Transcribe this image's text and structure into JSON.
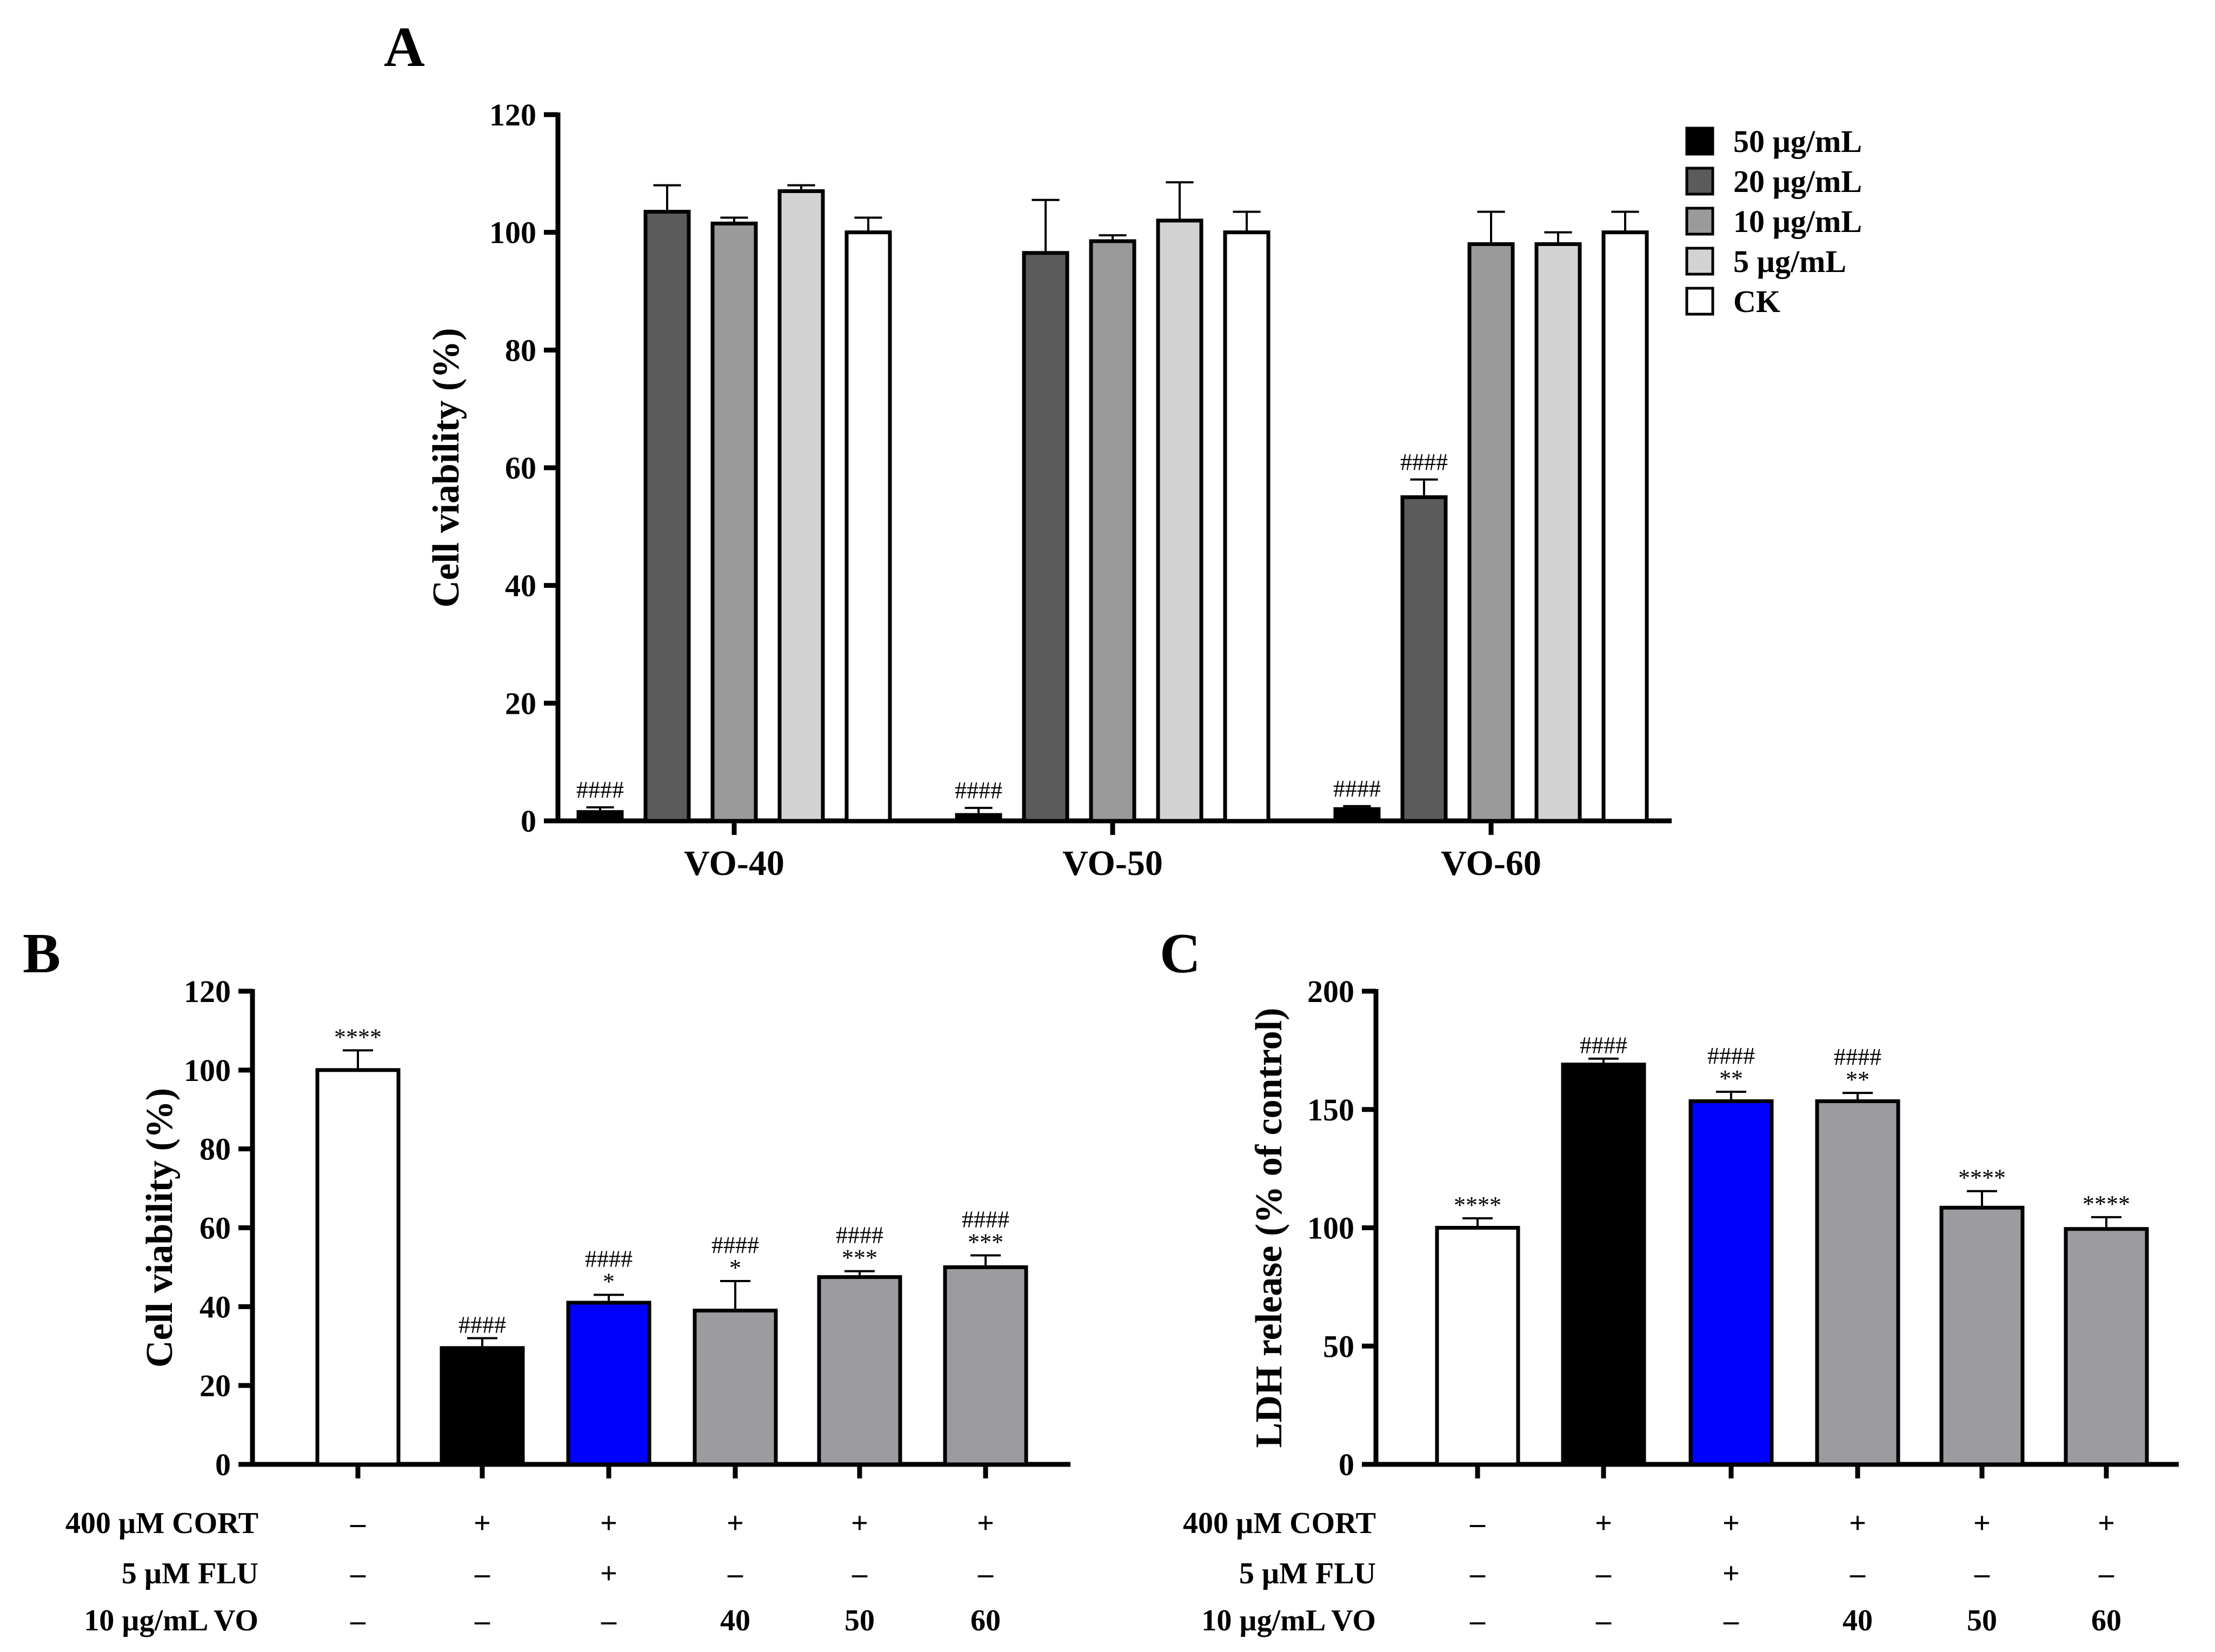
{
  "chart_data": [
    {
      "panel": "A",
      "type": "bar",
      "ylabel": "Cell viability (%)",
      "ylim": [
        0,
        120
      ],
      "yticks": [
        "0",
        "20",
        "40",
        "60",
        "80",
        "100",
        "120"
      ],
      "categories": [
        "VO-40",
        "VO-50",
        "VO-60"
      ],
      "legend_position": "top-right",
      "series": [
        {
          "name": "50 µg/mL",
          "color": "#000000",
          "values": [
            1.5,
            1,
            2
          ],
          "errors": [
            0.8,
            1.2,
            0.5
          ],
          "annotations": [
            "####",
            "####",
            "####"
          ]
        },
        {
          "name": "20 µg/mL",
          "color": "#5b5b5b",
          "values": [
            103.5,
            96.5,
            55
          ],
          "errors": [
            4.5,
            9,
            3
          ],
          "annotations": [
            "",
            "",
            "####"
          ]
        },
        {
          "name": "10 µg/mL",
          "color": "#9a9a9a",
          "values": [
            101.5,
            98.5,
            98
          ],
          "errors": [
            1,
            1,
            5.5
          ],
          "annotations": [
            "",
            "",
            ""
          ]
        },
        {
          "name": "5 µg/mL",
          "color": "#d3d3d3",
          "values": [
            107,
            102,
            98
          ],
          "errors": [
            1,
            6.5,
            2
          ],
          "annotations": [
            "",
            "",
            ""
          ]
        },
        {
          "name": "CK",
          "color": "#ffffff",
          "values": [
            100,
            100,
            100
          ],
          "errors": [
            2.5,
            3.5,
            3.5
          ],
          "annotations": [
            "",
            "",
            ""
          ]
        }
      ]
    },
    {
      "panel": "B",
      "type": "bar",
      "ylabel": "Cell viability (%)",
      "ylim": [
        0,
        120
      ],
      "yticks": [
        "0",
        "20",
        "40",
        "60",
        "80",
        "100",
        "120"
      ],
      "values": [
        100,
        29.5,
        41,
        39,
        47.5,
        50
      ],
      "errors": [
        5,
        2.5,
        2,
        7.5,
        1.5,
        3
      ],
      "colors": [
        "#ffffff",
        "#000000",
        "#0000ff",
        "#9c9ca0",
        "#9c9ca0",
        "#9c9ca0"
      ],
      "annotations": [
        [
          "****"
        ],
        [
          "####"
        ],
        [
          "####",
          "*"
        ],
        [
          "####",
          "*"
        ],
        [
          "####",
          "***"
        ],
        [
          "####",
          "***"
        ]
      ],
      "treatment_rows": [
        {
          "label": "400 µM CORT",
          "values": [
            "–",
            "+",
            "+",
            "+",
            "+",
            "+"
          ]
        },
        {
          "label": "5 µM FLU",
          "values": [
            "–",
            "–",
            "+",
            "–",
            "–",
            "–"
          ]
        },
        {
          "label": "10 µg/mL VO",
          "values": [
            "–",
            "–",
            "–",
            "40",
            "50",
            "60"
          ]
        }
      ]
    },
    {
      "panel": "C",
      "type": "bar",
      "ylabel": "LDH release (% of control)",
      "ylim": [
        0,
        200
      ],
      "yticks": [
        "0",
        "50",
        "100",
        "150",
        "200"
      ],
      "values": [
        100,
        169,
        153.5,
        153.5,
        108.5,
        99.5
      ],
      "errors": [
        4,
        2.5,
        4,
        3.5,
        7,
        5
      ],
      "colors": [
        "#ffffff",
        "#000000",
        "#0000ff",
        "#9c9ca0",
        "#9c9ca0",
        "#9c9ca0"
      ],
      "annotations": [
        [
          "****"
        ],
        [
          "####"
        ],
        [
          "####",
          "**"
        ],
        [
          "####",
          "**"
        ],
        [
          "****"
        ],
        [
          "****"
        ]
      ],
      "treatment_rows": [
        {
          "label": "400 µM CORT",
          "values": [
            "–",
            "+",
            "+",
            "+",
            "+",
            "+"
          ]
        },
        {
          "label": "5 µM FLU",
          "values": [
            "–",
            "–",
            "+",
            "–",
            "–",
            "–"
          ]
        },
        {
          "label": "10 µg/mL VO",
          "values": [
            "–",
            "–",
            "–",
            "40",
            "50",
            "60"
          ]
        }
      ]
    }
  ]
}
